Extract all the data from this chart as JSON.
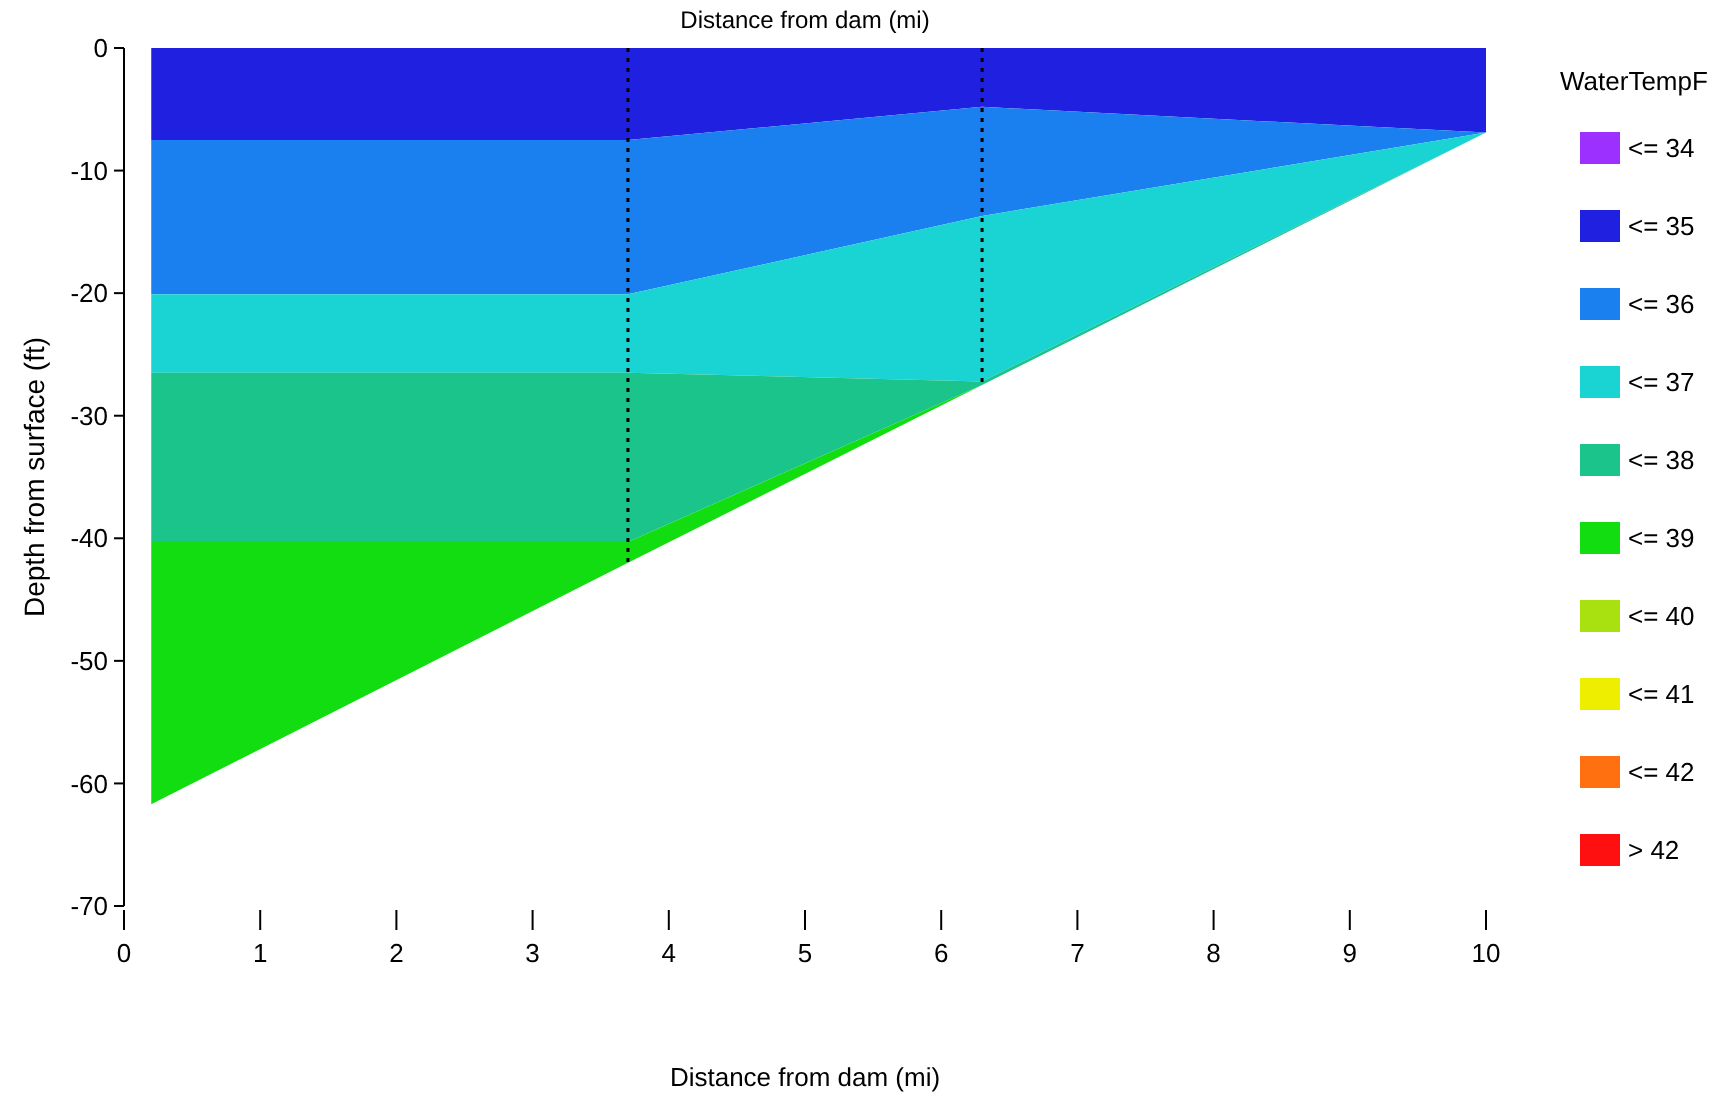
{
  "chart_data": {
    "type": "area",
    "stacked": true,
    "title": "Distance from dam (mi)",
    "xlabel": "Distance from dam (mi)",
    "ylabel": "Depth from surface (ft)",
    "legend_title": "WaterTempF",
    "legend": "right",
    "x": [
      0.2,
      3.7,
      6.3,
      10
    ],
    "series": [
      {
        "name": "<= 34",
        "color": "#9b30ff",
        "values": [
          null,
          null,
          null,
          null
        ]
      },
      {
        "name": "<= 35",
        "color": "#2020e0",
        "values": [
          -7.5,
          -7.5,
          -4.8,
          -6.9
        ]
      },
      {
        "name": "<= 36",
        "color": "#1a7fef",
        "values": [
          -12.6,
          -12.6,
          -8.9,
          0
        ]
      },
      {
        "name": "<= 37",
        "color": "#1ad3d3",
        "values": [
          -6.4,
          -6.4,
          -13.5,
          0
        ]
      },
      {
        "name": "<= 38",
        "color": "#1ac48a",
        "values": [
          -13.8,
          -13.8,
          -0.3,
          0
        ]
      },
      {
        "name": "<= 39",
        "color": "#11dd11",
        "values": [
          -21.4,
          -1.7,
          0,
          0
        ]
      },
      {
        "name": "<= 40",
        "color": "#a8e010",
        "values": [
          null,
          null,
          null,
          null
        ]
      },
      {
        "name": "<= 41",
        "color": "#eeee00",
        "values": [
          null,
          null,
          null,
          null
        ]
      },
      {
        "name": "<= 42",
        "color": "#ff7010",
        "values": [
          null,
          null,
          null,
          null
        ]
      },
      {
        "name": "> 42",
        "color": "#ff1010",
        "values": [
          null,
          null,
          null,
          null
        ]
      }
    ],
    "xlim": [
      0,
      10
    ],
    "xticks": [
      0,
      1,
      2,
      3,
      4,
      5,
      6,
      7,
      8,
      9,
      10
    ],
    "ylim": [
      -70,
      0
    ],
    "yticks": [
      0,
      -10,
      -20,
      -30,
      -40,
      -50,
      -60,
      -70
    ],
    "ref_lines": [
      {
        "axis": "x",
        "value": 3.7,
        "line_style": "dotted",
        "color": "#000000"
      },
      {
        "axis": "x",
        "value": 6.3,
        "line_style": "dotted",
        "color": "#000000"
      }
    ]
  }
}
